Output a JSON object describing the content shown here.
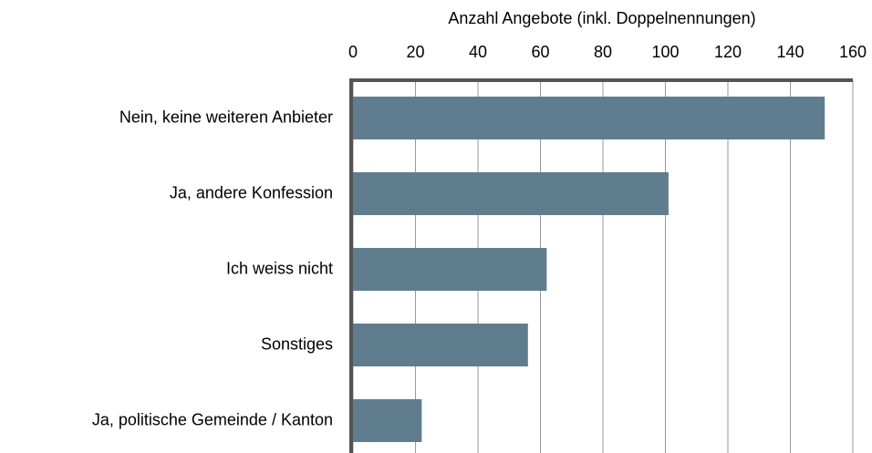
{
  "chart_data": {
    "type": "bar",
    "orientation": "horizontal",
    "x_label": "Anzahl Angebote (inkl. Doppelnennungen)",
    "categories": [
      "Nein, keine weiteren Anbieter",
      "Ja, andere Konfession",
      "Ich weiss nicht",
      "Sonstiges",
      "Ja, politische Gemeinde / Kanton"
    ],
    "values": [
      151,
      101,
      62,
      56,
      22
    ],
    "color": "#5f7d8e",
    "xlim": [
      0,
      160
    ],
    "xticks": [
      0,
      20,
      40,
      60,
      80,
      100,
      120,
      140,
      160
    ],
    "grid": true
  }
}
